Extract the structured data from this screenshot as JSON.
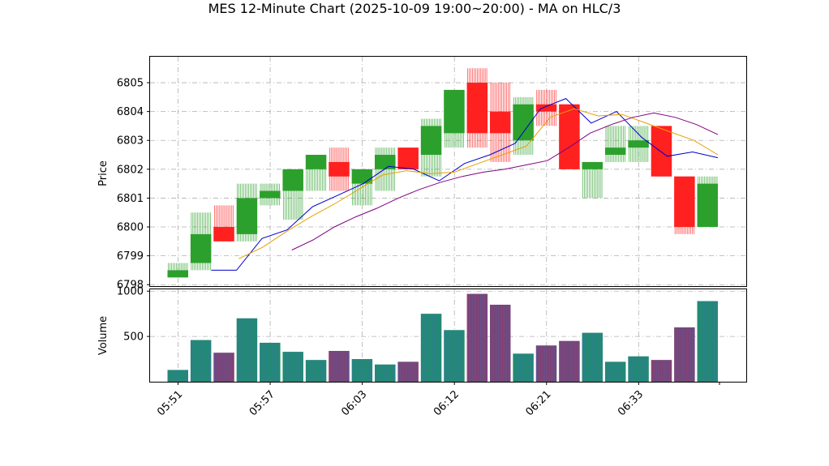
{
  "chart_data": {
    "type": "candlestick",
    "title": "MES 12-Minute Chart (2025-10-09 19:00~20:00) - MA on HLC/3",
    "price_panel": {
      "ylabel": "Price",
      "ylim": [
        6797.95,
        6805.9
      ],
      "yticks": [
        "6798",
        "6799",
        "6800",
        "6801",
        "6802",
        "6803",
        "6804",
        "6805"
      ],
      "grid": true
    },
    "volume_panel": {
      "ylabel": "Volume",
      "ylim": [
        0,
        1020
      ],
      "yticks": [
        "500",
        "1000"
      ],
      "grid": true
    },
    "xticks": [
      "05:51",
      "05:57",
      "06:03",
      "06:12",
      "06:21",
      "06:33"
    ],
    "colors": {
      "up": "#2ca02c",
      "down": "#ff2020",
      "vol_up": "#1f8f6a",
      "vol_down": "#8b3a6b",
      "vol_edge": "#3a6fb0",
      "ma_fast": "#0000cc",
      "ma_mid": "#e6a000",
      "ma_slow": "#800080"
    },
    "candles": [
      {
        "open": 6798.25,
        "high": 6798.75,
        "low": 6798.25,
        "close": 6798.5,
        "volume": 130
      },
      {
        "open": 6798.75,
        "high": 6800.5,
        "low": 6798.5,
        "close": 6799.75,
        "volume": 460
      },
      {
        "open": 6800.0,
        "high": 6800.75,
        "low": 6799.5,
        "close": 6799.5,
        "volume": 320
      },
      {
        "open": 6799.75,
        "high": 6801.5,
        "low": 6799.5,
        "close": 6801.0,
        "volume": 700
      },
      {
        "open": 6801.0,
        "high": 6801.5,
        "low": 6800.75,
        "close": 6801.25,
        "volume": 430
      },
      {
        "open": 6801.25,
        "high": 6802.0,
        "low": 6800.25,
        "close": 6802.0,
        "volume": 330
      },
      {
        "open": 6802.0,
        "high": 6802.5,
        "low": 6801.25,
        "close": 6802.5,
        "volume": 240
      },
      {
        "open": 6802.25,
        "high": 6802.75,
        "low": 6801.25,
        "close": 6801.75,
        "volume": 340
      },
      {
        "open": 6801.5,
        "high": 6802.0,
        "low": 6800.75,
        "close": 6802.0,
        "volume": 250
      },
      {
        "open": 6802.0,
        "high": 6802.75,
        "low": 6801.25,
        "close": 6802.5,
        "volume": 190
      },
      {
        "open": 6802.75,
        "high": 6802.75,
        "low": 6802.0,
        "close": 6802.0,
        "volume": 220
      },
      {
        "open": 6802.5,
        "high": 6803.75,
        "low": 6801.75,
        "close": 6803.5,
        "volume": 750
      },
      {
        "open": 6803.25,
        "high": 6804.75,
        "low": 6802.75,
        "close": 6804.75,
        "volume": 570
      },
      {
        "open": 6805.0,
        "high": 6805.5,
        "low": 6802.75,
        "close": 6803.25,
        "volume": 970
      },
      {
        "open": 6804.0,
        "high": 6805.0,
        "low": 6802.25,
        "close": 6803.25,
        "volume": 850
      },
      {
        "open": 6803.0,
        "high": 6804.5,
        "low": 6802.5,
        "close": 6804.25,
        "volume": 310
      },
      {
        "open": 6804.25,
        "high": 6804.75,
        "low": 6803.5,
        "close": 6804.0,
        "volume": 400
      },
      {
        "open": 6804.25,
        "high": 6804.25,
        "low": 6802.0,
        "close": 6802.0,
        "volume": 450
      },
      {
        "open": 6802.0,
        "high": 6802.25,
        "low": 6801.0,
        "close": 6802.25,
        "volume": 540
      },
      {
        "open": 6802.5,
        "high": 6803.5,
        "low": 6802.25,
        "close": 6802.75,
        "volume": 220
      },
      {
        "open": 6802.75,
        "high": 6803.5,
        "low": 6802.25,
        "close": 6803.0,
        "volume": 280
      },
      {
        "open": 6803.5,
        "high": 6803.5,
        "low": 6801.75,
        "close": 6801.75,
        "volume": 240
      },
      {
        "open": 6801.75,
        "high": 6801.75,
        "low": 6799.75,
        "close": 6800.0,
        "volume": 600
      },
      {
        "open": 6800.0,
        "high": 6801.75,
        "low": 6800.0,
        "close": 6801.5,
        "volume": 890
      }
    ],
    "ma_fast": [
      6798.5,
      6798.5,
      6799.6,
      6799.9,
      6800.7,
      6801.1,
      6801.5,
      6802.1,
      6802.0,
      6801.6,
      6802.2,
      6802.5,
      6802.9,
      6804.1,
      6804.45,
      6803.6,
      6804.0,
      6803.1,
      6802.45,
      6802.6,
      6802.4
    ],
    "ma_mid": [
      6798.9,
      6799.3,
      6799.85,
      6800.35,
      6800.8,
      6801.3,
      6801.8,
      6801.95,
      6801.85,
      6801.9,
      6802.2,
      6802.5,
      6802.8,
      6803.8,
      6804.1,
      6803.85,
      6803.9,
      6803.6,
      6803.3,
      6803.0,
      6802.5
    ],
    "ma_slow": [
      6799.2,
      6799.55,
      6800.0,
      6800.35,
      6800.65,
      6801.0,
      6801.3,
      6801.55,
      6801.75,
      6801.9,
      6802.0,
      6802.15,
      6802.3,
      6802.75,
      6803.25,
      6803.55,
      6803.8,
      6803.95,
      6803.8,
      6803.55,
      6803.2
    ]
  }
}
